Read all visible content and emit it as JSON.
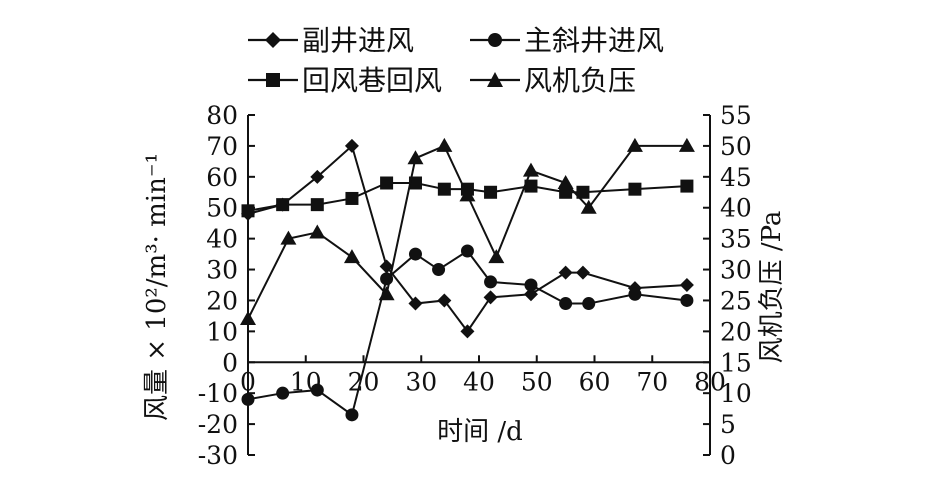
{
  "chart_data": {
    "type": "line",
    "xlabel": "时间 /d",
    "ylabel": "风量 × 10²/m³· min⁻¹",
    "y2label": "风机负压 /Pa",
    "xlim": [
      0,
      80
    ],
    "ylim": [
      -30,
      80
    ],
    "y2lim": [
      0,
      55
    ],
    "xticks": [
      0,
      10,
      20,
      30,
      40,
      50,
      60,
      70,
      80
    ],
    "yticks": [
      -30,
      -20,
      -10,
      0,
      10,
      20,
      30,
      40,
      50,
      60,
      70,
      80
    ],
    "y2ticks": [
      0,
      5,
      10,
      15,
      20,
      25,
      30,
      35,
      40,
      45,
      50,
      55
    ],
    "grid": false,
    "legend": "top",
    "series": [
      {
        "name": "副井进风",
        "marker": "diamond",
        "axis": "left",
        "x": [
          0,
          6,
          12,
          18,
          24,
          29,
          34,
          38,
          42,
          49,
          55,
          58,
          67,
          76
        ],
        "y": [
          48,
          51,
          60,
          70,
          31,
          19,
          20,
          10,
          21,
          22,
          29,
          29,
          24,
          25
        ]
      },
      {
        "name": "主斜井进风",
        "marker": "circle",
        "axis": "left",
        "x": [
          0,
          6,
          12,
          18,
          24,
          29,
          33,
          38,
          42,
          49,
          55,
          59,
          67,
          76
        ],
        "y": [
          -12,
          -10,
          -9,
          -17,
          27,
          35,
          30,
          36,
          26,
          25,
          19,
          19,
          22,
          20
        ]
      },
      {
        "name": "回风巷回风",
        "marker": "square",
        "axis": "left",
        "x": [
          0,
          6,
          12,
          18,
          24,
          29,
          34,
          38,
          42,
          49,
          55,
          58,
          67,
          76
        ],
        "y": [
          49,
          51,
          51,
          53,
          58,
          58,
          56,
          56,
          55,
          57,
          55,
          55,
          56,
          57
        ]
      },
      {
        "name": "风机负压",
        "marker": "triangle",
        "axis": "right",
        "x": [
          0,
          7,
          12,
          18,
          24,
          29,
          34,
          38,
          43,
          49,
          55,
          59,
          67,
          76
        ],
        "y": [
          22,
          35,
          36,
          32,
          26,
          48,
          50,
          42,
          32,
          46,
          44,
          40,
          50,
          50
        ]
      }
    ]
  }
}
